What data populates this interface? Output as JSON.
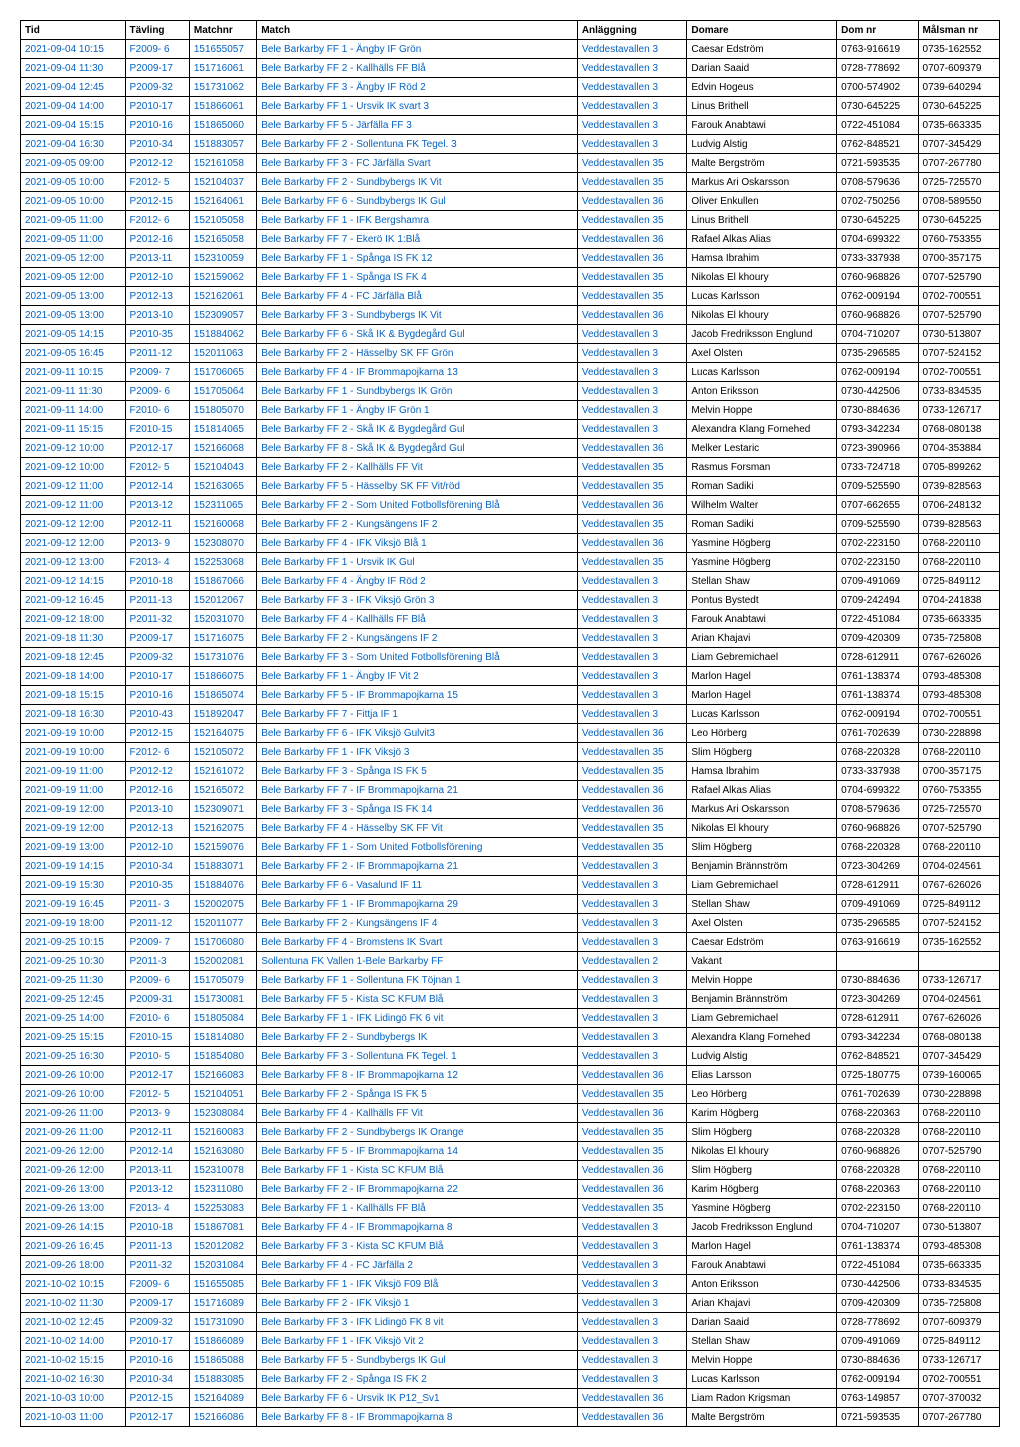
{
  "columns": [
    "Tid",
    "Tävling",
    "Matchnr",
    "Match",
    "Anläggning",
    "Domare",
    "Dom nr",
    "Målsman nr"
  ],
  "col_link": [
    true,
    true,
    true,
    true,
    true,
    false,
    false,
    false
  ],
  "col_classes": [
    "col-tid",
    "col-tavling",
    "col-matchnr",
    "col-match",
    "col-anl",
    "col-domare",
    "col-domnr",
    "col-malsman"
  ],
  "rows": [
    [
      "2021-09-04 10:15",
      "F2009- 6",
      "151655057",
      "Bele Barkarby FF 1 - Ängby IF Grön",
      "Veddestavallen 3",
      "Caesar Edström",
      "0763-916619",
      "0735-162552"
    ],
    [
      "2021-09-04 11:30",
      "P2009-17",
      "151716061",
      "Bele Barkarby FF 2 - Kallhälls FF Blå",
      "Veddestavallen 3",
      "Darian Saaid",
      "0728-778692",
      "0707-609379"
    ],
    [
      "2021-09-04 12:45",
      "P2009-32",
      "151731062",
      "Bele Barkarby FF 3 - Ängby IF Röd 2",
      "Veddestavallen 3",
      "Edvin Hogeus",
      "0700-574902",
      "0739-640294"
    ],
    [
      "2021-09-04 14:00",
      "P2010-17",
      "151866061",
      "Bele Barkarby FF 1 - Ursvik IK svart 3",
      "Veddestavallen 3",
      "Linus Brithell",
      "0730-645225",
      "0730-645225"
    ],
    [
      "2021-09-04 15:15",
      "P2010-16",
      "151865060",
      "Bele Barkarby FF 5 - Järfälla FF 3",
      "Veddestavallen 3",
      "Farouk Anabtawi",
      "0722-451084",
      "0735-663335"
    ],
    [
      "2021-09-04 16:30",
      "P2010-34",
      "151883057",
      "Bele Barkarby FF 2 - Sollentuna FK Tegel. 3",
      "Veddestavallen 3",
      "Ludvig Alstig",
      "0762-848521",
      "0707-345429"
    ],
    [
      "2021-09-05 09:00",
      "P2012-12",
      "152161058",
      "Bele Barkarby FF 3 - FC Järfälla Svart",
      "Veddestavallen 35",
      "Malte Bergström",
      "0721-593535",
      "0707-267780"
    ],
    [
      "2021-09-05 10:00",
      "F2012- 5",
      "152104037",
      "Bele Barkarby FF 2 - Sundbybergs IK Vit",
      "Veddestavallen 35",
      "Markus Ari Oskarsson",
      "0708-579636",
      "0725-725570"
    ],
    [
      "2021-09-05 10:00",
      "P2012-15",
      "152164061",
      "Bele Barkarby FF 6 - Sundbybergs IK Gul",
      "Veddestavallen 36",
      "Oliver Enkullen",
      "0702-750256",
      "0708-589550"
    ],
    [
      "2021-09-05 11:00",
      "F2012- 6",
      "152105058",
      "Bele Barkarby FF 1 - IFK Bergshamra",
      "Veddestavallen 35",
      "Linus Brithell",
      "0730-645225",
      "0730-645225"
    ],
    [
      "2021-09-05 11:00",
      "P2012-16",
      "152165058",
      "Bele Barkarby FF 7 - Ekerö IK 1:Blå",
      "Veddestavallen 36",
      "Rafael Alkas Alias",
      "0704-699322",
      "0760-753355"
    ],
    [
      "2021-09-05 12:00",
      "P2013-11",
      "152310059",
      "Bele Barkarby FF 1 - Spånga IS FK 12",
      "Veddestavallen 36",
      "Hamsa Ibrahim",
      "0733-337938",
      "0700-357175"
    ],
    [
      "2021-09-05 12:00",
      "P2012-10",
      "152159062",
      "Bele Barkarby FF 1 - Spånga IS FK 4",
      "Veddestavallen 35",
      "Nikolas El khoury",
      "0760-968826",
      "0707-525790"
    ],
    [
      "2021-09-05 13:00",
      "P2012-13",
      "152162061",
      "Bele Barkarby FF 4 - FC Järfälla Blå",
      "Veddestavallen 35",
      "Lucas Karlsson",
      "0762-009194",
      "0702-700551"
    ],
    [
      "2021-09-05 13:00",
      "P2013-10",
      "152309057",
      "Bele Barkarby FF 3 - Sundbybergs IK Vit",
      "Veddestavallen 36",
      "Nikolas El khoury",
      "0760-968826",
      "0707-525790"
    ],
    [
      "2021-09-05 14:15",
      "P2010-35",
      "151884062",
      "Bele Barkarby FF 6 - Skå IK & Bygdegård Gul",
      "Veddestavallen 3",
      "Jacob Fredriksson Englund",
      "0704-710207",
      "0730-513807"
    ],
    [
      "2021-09-05 16:45",
      "P2011-12",
      "152011063",
      "Bele Barkarby FF 2 - Hässelby SK FF Grön",
      "Veddestavallen 3",
      "Axel Olsten",
      "0735-296585",
      "0707-524152"
    ],
    [
      "2021-09-11 10:15",
      "P2009- 7",
      "151706065",
      "Bele Barkarby FF 4 - IF Brommapojkarna 13",
      "Veddestavallen 3",
      "Lucas Karlsson",
      "0762-009194",
      "0702-700551"
    ],
    [
      "2021-09-11 11:30",
      "P2009- 6",
      "151705064",
      "Bele Barkarby FF 1 - Sundbybergs IK Grön",
      "Veddestavallen 3",
      "Anton Eriksson",
      "0730-442506",
      "0733-834535"
    ],
    [
      "2021-09-11 14:00",
      "F2010- 6",
      "151805070",
      "Bele Barkarby FF 1 - Ängby IF Grön 1",
      "Veddestavallen 3",
      "Melvin Hoppe",
      "0730-884636",
      "0733-126717"
    ],
    [
      "2021-09-11 15:15",
      "F2010-15",
      "151814065",
      "Bele Barkarby FF 2 - Skå IK & Bygdegård Gul",
      "Veddestavallen 3",
      "Alexandra Klang Fornehed",
      "0793-342234",
      "0768-080138"
    ],
    [
      "2021-09-12 10:00",
      "P2012-17",
      "152166068",
      "Bele Barkarby FF 8 - Skå IK & Bygdegård Gul",
      "Veddestavallen 36",
      "Melker Lestaric",
      "0723-390966",
      "0704-353884"
    ],
    [
      "2021-09-12 10:00",
      "F2012- 5",
      "152104043",
      "Bele Barkarby FF 2 - Kallhälls FF Vit",
      "Veddestavallen 35",
      "Rasmus Forsman",
      "0733-724718",
      "0705-899262"
    ],
    [
      "2021-09-12 11:00",
      "P2012-14",
      "152163065",
      "Bele Barkarby FF 5 - Hässelby SK FF Vit/röd",
      "Veddestavallen 35",
      "Roman Sadiki",
      "0709-525590",
      "0739-828563"
    ],
    [
      "2021-09-12 11:00",
      "P2013-12",
      "152311065",
      "Bele Barkarby FF 2 - Som United Fotbollsförening Blå",
      "Veddestavallen 36",
      "Wilhelm Walter",
      "0707-662655",
      "0706-248132"
    ],
    [
      "2021-09-12 12:00",
      "P2012-11",
      "152160068",
      "Bele Barkarby FF 2 - Kungsängens IF 2",
      "Veddestavallen 35",
      "Roman Sadiki",
      "0709-525590",
      "0739-828563"
    ],
    [
      "2021-09-12 12:00",
      "P2013- 9",
      "152308070",
      "Bele Barkarby FF 4 - IFK Viksjö Blå 1",
      "Veddestavallen 36",
      "Yasmine Högberg",
      "0702-223150",
      "0768-220110"
    ],
    [
      "2021-09-12 13:00",
      "F2013- 4",
      "152253068",
      "Bele Barkarby FF 1 - Ursvik IK Gul",
      "Veddestavallen 35",
      "Yasmine Högberg",
      "0702-223150",
      "0768-220110"
    ],
    [
      "2021-09-12 14:15",
      "P2010-18",
      "151867066",
      "Bele Barkarby FF 4 - Ängby IF Röd 2",
      "Veddestavallen 3",
      "Stellan Shaw",
      "0709-491069",
      "0725-849112"
    ],
    [
      "2021-09-12 16:45",
      "P2011-13",
      "152012067",
      "Bele Barkarby FF 3 - IFK Viksjö Grön 3",
      "Veddestavallen 3",
      "Pontus Bystedt",
      "0709-242494",
      "0704-241838"
    ],
    [
      "2021-09-12 18:00",
      "P2011-32",
      "152031070",
      "Bele Barkarby FF 4 - Kallhälls FF Blå",
      "Veddestavallen 3",
      "Farouk Anabtawi",
      "0722-451084",
      "0735-663335"
    ],
    [
      "2021-09-18 11:30",
      "P2009-17",
      "151716075",
      "Bele Barkarby FF 2 - Kungsängens IF 2",
      "Veddestavallen 3",
      "Arian Khajavi",
      "0709-420309",
      "0735-725808"
    ],
    [
      "2021-09-18 12:45",
      "P2009-32",
      "151731076",
      "Bele Barkarby FF 3 - Som United Fotbollsförening Blå",
      "Veddestavallen 3",
      "Liam Gebremichael",
      "0728-612911",
      "0767-626026"
    ],
    [
      "2021-09-18 14:00",
      "P2010-17",
      "151866075",
      "Bele Barkarby FF 1 - Ängby IF Vit 2",
      "Veddestavallen 3",
      "Marlon Hagel",
      "0761-138374",
      "0793-485308"
    ],
    [
      "2021-09-18 15:15",
      "P2010-16",
      "151865074",
      "Bele Barkarby FF 5 - IF Brommapojkarna 15",
      "Veddestavallen 3",
      "Marlon Hagel",
      "0761-138374",
      "0793-485308"
    ],
    [
      "2021-09-18 16:30",
      "P2010-43",
      "151892047",
      "Bele Barkarby FF 7 - Fittja IF 1",
      "Veddestavallen 3",
      "Lucas Karlsson",
      "0762-009194",
      "0702-700551"
    ],
    [
      "2021-09-19 10:00",
      "P2012-15",
      "152164075",
      "Bele Barkarby FF 6 - IFK Viksjö Gulvit3",
      "Veddestavallen 36",
      "Leo Hörberg",
      "0761-702639",
      "0730-228898"
    ],
    [
      "2021-09-19 10:00",
      "F2012- 6",
      "152105072",
      "Bele Barkarby FF 1 - IFK Viksjö 3",
      "Veddestavallen 35",
      "Slim Högberg",
      "0768-220328",
      "0768-220110"
    ],
    [
      "2021-09-19 11:00",
      "P2012-12",
      "152161072",
      "Bele Barkarby FF 3 - Spånga IS FK 5",
      "Veddestavallen 35",
      "Hamsa Ibrahim",
      "0733-337938",
      "0700-357175"
    ],
    [
      "2021-09-19 11:00",
      "P2012-16",
      "152165072",
      "Bele Barkarby FF 7 - IF Brommapojkarna 21",
      "Veddestavallen 36",
      "Rafael Alkas Alias",
      "0704-699322",
      "0760-753355"
    ],
    [
      "2021-09-19 12:00",
      "P2013-10",
      "152309071",
      "Bele Barkarby FF 3 - Spånga IS FK 14",
      "Veddestavallen 36",
      "Markus Ari Oskarsson",
      "0708-579636",
      "0725-725570"
    ],
    [
      "2021-09-19 12:00",
      "P2012-13",
      "152162075",
      "Bele Barkarby FF 4 - Hässelby SK FF Vit",
      "Veddestavallen 35",
      "Nikolas El khoury",
      "0760-968826",
      "0707-525790"
    ],
    [
      "2021-09-19 13:00",
      "P2012-10",
      "152159076",
      "Bele Barkarby FF 1 - Som United Fotbollsförening",
      "Veddestavallen 35",
      "Slim Högberg",
      "0768-220328",
      "0768-220110"
    ],
    [
      "2021-09-19 14:15",
      "P2010-34",
      "151883071",
      "Bele Barkarby FF 2 - IF Brommapojkarna 21",
      "Veddestavallen 3",
      "Benjamin Brännström",
      "0723-304269",
      "0704-024561"
    ],
    [
      "2021-09-19 15:30",
      "P2010-35",
      "151884076",
      "Bele Barkarby FF 6 - Vasalund IF 11",
      "Veddestavallen 3",
      "Liam Gebremichael",
      "0728-612911",
      "0767-626026"
    ],
    [
      "2021-09-19 16:45",
      "P2011- 3",
      "152002075",
      "Bele Barkarby FF 1 - IF Brommapojkarna 29",
      "Veddestavallen 3",
      "Stellan Shaw",
      "0709-491069",
      "0725-849112"
    ],
    [
      "2021-09-19 18:00",
      "P2011-12",
      "152011077",
      "Bele Barkarby FF 2 - Kungsängens IF 4",
      "Veddestavallen 3",
      "Axel Olsten",
      "0735-296585",
      "0707-524152"
    ],
    [
      "2021-09-25 10:15",
      "P2009- 7",
      "151706080",
      "Bele Barkarby FF 4 - Bromstens IK Svart",
      "Veddestavallen 3",
      "Caesar Edström",
      "0763-916619",
      "0735-162552"
    ],
    [
      "2021-09-25 10:30",
      "P2011-3",
      "152002081",
      "Sollentuna FK Vallen 1-Bele Barkarby FF",
      "Veddestavallen 2",
      "Vakant",
      "",
      ""
    ],
    [
      "2021-09-25 11:30",
      "P2009- 6",
      "151705079",
      "Bele Barkarby FF 1 - Sollentuna FK Töjnan 1",
      "Veddestavallen 3",
      "Melvin Hoppe",
      "0730-884636",
      "0733-126717"
    ],
    [
      "2021-09-25 12:45",
      "P2009-31",
      "151730081",
      "Bele Barkarby FF 5 - Kista SC KFUM Blå",
      "Veddestavallen 3",
      "Benjamin Brännström",
      "0723-304269",
      "0704-024561"
    ],
    [
      "2021-09-25 14:00",
      "F2010- 6",
      "151805084",
      "Bele Barkarby FF 1 - IFK Lidingö FK 6 vit",
      "Veddestavallen 3",
      "Liam Gebremichael",
      "0728-612911",
      "0767-626026"
    ],
    [
      "2021-09-25 15:15",
      "F2010-15",
      "151814080",
      "Bele Barkarby FF 2 - Sundbybergs IK",
      "Veddestavallen 3",
      "Alexandra Klang Fornehed",
      "0793-342234",
      "0768-080138"
    ],
    [
      "2021-09-25 16:30",
      "P2010- 5",
      "151854080",
      "Bele Barkarby FF 3 - Sollentuna FK Tegel. 1",
      "Veddestavallen 3",
      "Ludvig Alstig",
      "0762-848521",
      "0707-345429"
    ],
    [
      "2021-09-26 10:00",
      "P2012-17",
      "152166083",
      "Bele Barkarby FF 8 - IF Brommapojkarna 12",
      "Veddestavallen 36",
      "Elias Larsson",
      "0725-180775",
      "0739-160065"
    ],
    [
      "2021-09-26 10:00",
      "F2012- 5",
      "152104051",
      "Bele Barkarby FF 2 - Spånga IS FK 5",
      "Veddestavallen 35",
      "Leo Hörberg",
      "0761-702639",
      "0730-228898"
    ],
    [
      "2021-09-26 11:00",
      "P2013- 9",
      "152308084",
      "Bele Barkarby FF 4 - Kallhälls FF Vit",
      "Veddestavallen 36",
      "Karim Högberg",
      "0768-220363",
      "0768-220110"
    ],
    [
      "2021-09-26 11:00",
      "P2012-11",
      "152160083",
      "Bele Barkarby FF 2 - Sundbybergs IK Orange",
      "Veddestavallen 35",
      "Slim Högberg",
      "0768-220328",
      "0768-220110"
    ],
    [
      "2021-09-26 12:00",
      "P2012-14",
      "152163080",
      "Bele Barkarby FF 5 - IF Brommapojkarna 14",
      "Veddestavallen 35",
      "Nikolas El khoury",
      "0760-968826",
      "0707-525790"
    ],
    [
      "2021-09-26 12:00",
      "P2013-11",
      "152310078",
      "Bele Barkarby FF 1 - Kista SC KFUM Blå",
      "Veddestavallen 36",
      "Slim Högberg",
      "0768-220328",
      "0768-220110"
    ],
    [
      "2021-09-26 13:00",
      "P2013-12",
      "152311080",
      "Bele Barkarby FF 2 - IF Brommapojkarna 22",
      "Veddestavallen 36",
      "Karim Högberg",
      "0768-220363",
      "0768-220110"
    ],
    [
      "2021-09-26 13:00",
      "F2013- 4",
      "152253083",
      "Bele Barkarby FF 1 - Kallhälls FF Blå",
      "Veddestavallen 35",
      "Yasmine Högberg",
      "0702-223150",
      "0768-220110"
    ],
    [
      "2021-09-26 14:15",
      "P2010-18",
      "151867081",
      "Bele Barkarby FF 4 - IF Brommapojkarna 8",
      "Veddestavallen 3",
      "Jacob Fredriksson Englund",
      "0704-710207",
      "0730-513807"
    ],
    [
      "2021-09-26 16:45",
      "P2011-13",
      "152012082",
      "Bele Barkarby FF 3 - Kista SC KFUM Blå",
      "Veddestavallen 3",
      "Marlon Hagel",
      "0761-138374",
      "0793-485308"
    ],
    [
      "2021-09-26 18:00",
      "P2011-32",
      "152031084",
      "Bele Barkarby FF 4 - FC Järfälla 2",
      "Veddestavallen 3",
      "Farouk Anabtawi",
      "0722-451084",
      "0735-663335"
    ],
    [
      "2021-10-02 10:15",
      "F2009- 6",
      "151655085",
      "Bele Barkarby FF 1 - IFK Viksjö F09 Blå",
      "Veddestavallen 3",
      "Anton Eriksson",
      "0730-442506",
      "0733-834535"
    ],
    [
      "2021-10-02 11:30",
      "P2009-17",
      "151716089",
      "Bele Barkarby FF 2 - IFK Viksjö 1",
      "Veddestavallen 3",
      "Arian Khajavi",
      "0709-420309",
      "0735-725808"
    ],
    [
      "2021-10-02 12:45",
      "P2009-32",
      "151731090",
      "Bele Barkarby FF 3 - IFK Lidingö FK 8 vit",
      "Veddestavallen 3",
      "Darian Saaid",
      "0728-778692",
      "0707-609379"
    ],
    [
      "2021-10-02 14:00",
      "P2010-17",
      "151866089",
      "Bele Barkarby FF 1 - IFK Viksjö Vit 2",
      "Veddestavallen 3",
      "Stellan Shaw",
      "0709-491069",
      "0725-849112"
    ],
    [
      "2021-10-02 15:15",
      "P2010-16",
      "151865088",
      "Bele Barkarby FF 5 - Sundbybergs IK Gul",
      "Veddestavallen 3",
      "Melvin Hoppe",
      "0730-884636",
      "0733-126717"
    ],
    [
      "2021-10-02 16:30",
      "P2010-34",
      "151883085",
      "Bele Barkarby FF 2 - Spånga IS FK 2",
      "Veddestavallen 3",
      "Lucas Karlsson",
      "0762-009194",
      "0702-700551"
    ],
    [
      "2021-10-03 10:00",
      "P2012-15",
      "152164089",
      "Bele Barkarby FF 6 - Ursvik IK P12_Sv1",
      "Veddestavallen 36",
      "Liam Radon Krigsman",
      "0763-149857",
      "0707-370032"
    ],
    [
      "2021-10-03 11:00",
      "P2012-17",
      "152166086",
      "Bele Barkarby FF 8 - IF Brommapojkarna 8",
      "Veddestavallen 36",
      "Malte Bergström",
      "0721-593535",
      "0707-267780"
    ]
  ]
}
